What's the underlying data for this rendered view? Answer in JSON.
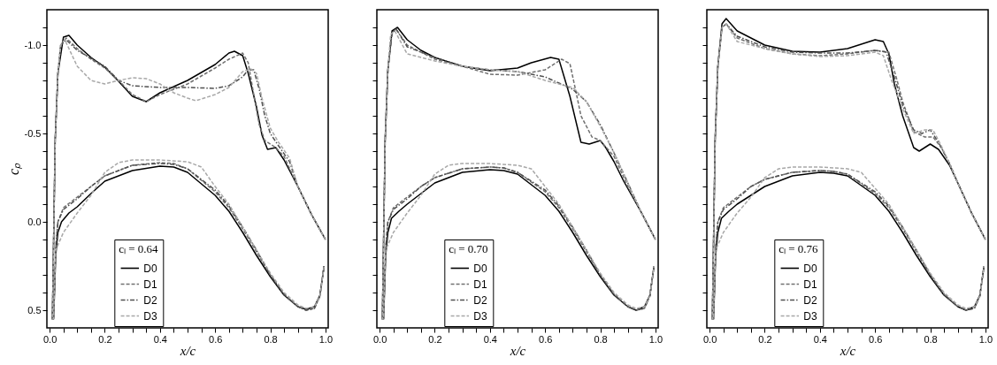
{
  "chart_data": [
    {
      "type": "line",
      "legend_title": "cₗ = 0.64",
      "xlabel": "x/c",
      "ylabel": "cₚ",
      "legend": "bottom",
      "grid": false,
      "xlim": [
        -0.01,
        1.01
      ],
      "ylim": [
        0.6,
        -1.2
      ],
      "xticks": [
        {
          "value": 0,
          "label": "0.0"
        },
        {
          "value": 0.05,
          "label": null
        },
        {
          "value": 0.1,
          "label": null
        },
        {
          "value": 0.15,
          "label": null
        },
        0.2,
        {
          "value": 0.25,
          "label": null
        },
        {
          "value": 0.3,
          "label": null
        },
        {
          "value": 0.35,
          "label": null
        },
        0.4,
        {
          "value": 0.45,
          "label": null
        },
        {
          "value": 0.5,
          "label": null
        },
        {
          "value": 0.55,
          "label": null
        },
        0.6,
        {
          "value": 0.65,
          "label": null
        },
        {
          "value": 0.7,
          "label": null
        },
        {
          "value": 0.75,
          "label": null
        },
        0.8,
        {
          "value": 0.85,
          "label": null
        },
        {
          "value": 0.9,
          "label": null
        },
        {
          "value": 0.95,
          "label": null
        },
        {
          "value": 1,
          "label": "1.0"
        }
      ],
      "yticks": [
        {
          "value": -1.1,
          "label": null
        },
        {
          "value": -1,
          "label": "-1.0"
        },
        {
          "value": -0.9,
          "label": null
        },
        {
          "value": -0.8,
          "label": null
        },
        {
          "value": -0.7,
          "label": null
        },
        {
          "value": -0.6,
          "label": null
        },
        -0.5,
        {
          "value": -0.4,
          "label": null
        },
        {
          "value": -0.3,
          "label": null
        },
        {
          "value": -0.2,
          "label": null
        },
        {
          "value": -0.1,
          "label": null
        },
        {
          "value": 0,
          "label": "0.0"
        },
        {
          "value": 0.1,
          "label": null
        },
        {
          "value": 0.2,
          "label": null
        },
        {
          "value": 0.3,
          "label": null
        },
        {
          "value": 0.4,
          "label": null
        },
        0.5
      ],
      "series": [
        {
          "name": "D0",
          "color": "#000000",
          "line_style": "solid",
          "x": [
            1.0,
            0.95,
            0.9,
            0.85,
            0.82,
            0.79,
            0.77,
            0.75,
            0.72,
            0.7,
            0.67,
            0.65,
            0.6,
            0.5,
            0.4,
            0.35,
            0.3,
            0.25,
            0.2,
            0.15,
            0.1,
            0.07,
            0.05,
            0.03,
            0.02,
            0.01,
            0.014,
            0.017,
            0.022,
            0.03,
            0.043,
            0.07,
            0.1,
            0.15,
            0.2,
            0.3,
            0.4,
            0.45,
            0.5,
            0.6,
            0.65,
            0.7,
            0.75,
            0.8,
            0.85,
            0.9,
            0.93,
            0.96,
            0.98,
            0.995
          ],
          "values": [
            0.1,
            -0.04,
            -0.2,
            -0.35,
            -0.42,
            -0.41,
            -0.49,
            -0.65,
            -0.84,
            -0.94,
            -0.965,
            -0.955,
            -0.89,
            -0.8,
            -0.73,
            -0.68,
            -0.71,
            -0.795,
            -0.875,
            -0.93,
            -1.0,
            -1.055,
            -1.045,
            -0.84,
            -0.46,
            0.55,
            0.55,
            0.43,
            0.19,
            0.06,
            0.0,
            -0.05,
            -0.085,
            -0.16,
            -0.23,
            -0.29,
            -0.315,
            -0.31,
            -0.28,
            -0.15,
            -0.06,
            0.06,
            0.19,
            0.31,
            0.415,
            0.48,
            0.495,
            0.48,
            0.415,
            0.25
          ]
        },
        {
          "name": "D1",
          "color": "#707070",
          "line_style": "dashed",
          "x": [
            1.0,
            0.95,
            0.9,
            0.85,
            0.82,
            0.78,
            0.76,
            0.74,
            0.72,
            0.7,
            0.65,
            0.6,
            0.5,
            0.4,
            0.35,
            0.3,
            0.25,
            0.2,
            0.15,
            0.1,
            0.06,
            0.04,
            0.03,
            0.02,
            0.01,
            0.014,
            0.017,
            0.022,
            0.03,
            0.05,
            0.1,
            0.15,
            0.2,
            0.3,
            0.4,
            0.45,
            0.5,
            0.6,
            0.65,
            0.7,
            0.75,
            0.8,
            0.85,
            0.9,
            0.93,
            0.96,
            0.98,
            0.995
          ],
          "values": [
            0.1,
            -0.04,
            -0.2,
            -0.37,
            -0.42,
            -0.46,
            -0.55,
            -0.72,
            -0.9,
            -0.955,
            -0.92,
            -0.87,
            -0.78,
            -0.72,
            -0.68,
            -0.72,
            -0.8,
            -0.87,
            -0.92,
            -0.98,
            -1.04,
            -1.0,
            -0.84,
            -0.46,
            0.55,
            0.55,
            0.4,
            0.15,
            0.0,
            -0.08,
            -0.14,
            -0.2,
            -0.26,
            -0.32,
            -0.335,
            -0.33,
            -0.3,
            -0.17,
            -0.08,
            0.04,
            0.17,
            0.3,
            0.41,
            0.48,
            0.5,
            0.49,
            0.42,
            0.25
          ]
        },
        {
          "name": "D2",
          "color": "#505050",
          "line_style": "dashdot",
          "x": [
            1.0,
            0.95,
            0.9,
            0.87,
            0.83,
            0.8,
            0.78,
            0.76,
            0.74,
            0.72,
            0.7,
            0.65,
            0.6,
            0.5,
            0.4,
            0.3,
            0.25,
            0.2,
            0.1,
            0.06,
            0.04,
            0.03,
            0.02,
            0.01,
            0.014,
            0.017,
            0.022,
            0.03,
            0.05,
            0.1,
            0.15,
            0.2,
            0.3,
            0.4,
            0.45,
            0.5,
            0.6,
            0.65,
            0.7,
            0.75,
            0.8,
            0.85,
            0.9,
            0.93,
            0.96,
            0.98,
            0.995
          ],
          "values": [
            0.1,
            -0.04,
            -0.2,
            -0.34,
            -0.43,
            -0.5,
            -0.6,
            -0.75,
            -0.86,
            -0.86,
            -0.82,
            -0.77,
            -0.755,
            -0.76,
            -0.76,
            -0.77,
            -0.8,
            -0.88,
            -0.97,
            -1.03,
            -1.0,
            -0.84,
            -0.46,
            0.55,
            0.55,
            0.4,
            0.15,
            0.0,
            -0.07,
            -0.13,
            -0.2,
            -0.26,
            -0.32,
            -0.33,
            -0.325,
            -0.3,
            -0.18,
            -0.09,
            0.03,
            0.16,
            0.3,
            0.41,
            0.48,
            0.5,
            0.49,
            0.42,
            0.25
          ]
        },
        {
          "name": "D3",
          "color": "#a8a8a8",
          "line_style": "dashed",
          "x": [
            1.0,
            0.95,
            0.9,
            0.87,
            0.83,
            0.8,
            0.77,
            0.75,
            0.73,
            0.7,
            0.65,
            0.6,
            0.53,
            0.5,
            0.45,
            0.4,
            0.35,
            0.3,
            0.25,
            0.2,
            0.15,
            0.1,
            0.055,
            0.04,
            0.03,
            0.02,
            0.01,
            0.014,
            0.022,
            0.05,
            0.1,
            0.15,
            0.2,
            0.25,
            0.3,
            0.4,
            0.5,
            0.55,
            0.6,
            0.65,
            0.7,
            0.75,
            0.8,
            0.85,
            0.9,
            0.93,
            0.96,
            0.98,
            0.995
          ],
          "values": [
            0.1,
            -0.04,
            -0.2,
            -0.36,
            -0.45,
            -0.53,
            -0.7,
            -0.84,
            -0.865,
            -0.85,
            -0.76,
            -0.72,
            -0.685,
            -0.7,
            -0.73,
            -0.78,
            -0.81,
            -0.815,
            -0.8,
            -0.78,
            -0.8,
            -0.88,
            -1.03,
            -1.0,
            -0.84,
            -0.46,
            0.55,
            0.55,
            0.16,
            0.06,
            -0.05,
            -0.15,
            -0.28,
            -0.335,
            -0.35,
            -0.35,
            -0.34,
            -0.31,
            -0.2,
            -0.1,
            0.03,
            0.16,
            0.29,
            0.4,
            0.47,
            0.49,
            0.48,
            0.42,
            0.25
          ]
        }
      ]
    },
    {
      "type": "line",
      "legend_title": "cₗ = 0.70",
      "xlabel": "x/c",
      "legend": "bottom",
      "grid": false,
      "tick_labels": "x",
      "xlim": [
        -0.01,
        1.01
      ],
      "ylim": [
        0.6,
        -1.2
      ],
      "xticks": [
        {
          "value": 0,
          "label": "0.0"
        },
        {
          "value": 0.05,
          "label": null
        },
        {
          "value": 0.1,
          "label": null
        },
        {
          "value": 0.15,
          "label": null
        },
        0.2,
        {
          "value": 0.25,
          "label": null
        },
        {
          "value": 0.3,
          "label": null
        },
        {
          "value": 0.35,
          "label": null
        },
        0.4,
        {
          "value": 0.45,
          "label": null
        },
        {
          "value": 0.5,
          "label": null
        },
        {
          "value": 0.55,
          "label": null
        },
        0.6,
        {
          "value": 0.65,
          "label": null
        },
        {
          "value": 0.7,
          "label": null
        },
        {
          "value": 0.75,
          "label": null
        },
        0.8,
        {
          "value": 0.85,
          "label": null
        },
        {
          "value": 0.9,
          "label": null
        },
        {
          "value": 0.95,
          "label": null
        },
        {
          "value": 1,
          "label": "1.0"
        }
      ],
      "yticks": [
        -1.1,
        -1,
        -0.9,
        -0.8,
        -0.7,
        -0.6,
        -0.5,
        -0.4,
        -0.3,
        -0.2,
        -0.1,
        0,
        0.1,
        0.2,
        0.3,
        0.4,
        0.5
      ],
      "series": [
        {
          "name": "D0",
          "color": "#000000",
          "line_style": "solid",
          "x": [
            1.0,
            0.95,
            0.885,
            0.85,
            0.82,
            0.8,
            0.76,
            0.73,
            0.69,
            0.65,
            0.62,
            0.55,
            0.5,
            0.4,
            0.3,
            0.2,
            0.15,
            0.1,
            0.065,
            0.045,
            0.03,
            0.02,
            0.01,
            0.014,
            0.017,
            0.022,
            0.03,
            0.043,
            0.07,
            0.1,
            0.15,
            0.2,
            0.3,
            0.4,
            0.45,
            0.5,
            0.6,
            0.65,
            0.7,
            0.75,
            0.8,
            0.85,
            0.9,
            0.93,
            0.96,
            0.98,
            0.995
          ],
          "values": [
            0.1,
            -0.05,
            -0.23,
            -0.34,
            -0.42,
            -0.46,
            -0.44,
            -0.45,
            -0.71,
            -0.92,
            -0.93,
            -0.9,
            -0.87,
            -0.855,
            -0.88,
            -0.93,
            -0.97,
            -1.03,
            -1.1,
            -1.08,
            -0.86,
            -0.46,
            0.55,
            0.55,
            0.43,
            0.19,
            0.06,
            -0.02,
            -0.06,
            -0.1,
            -0.16,
            -0.22,
            -0.28,
            -0.295,
            -0.29,
            -0.27,
            -0.15,
            -0.06,
            0.06,
            0.19,
            0.31,
            0.415,
            0.48,
            0.5,
            0.48,
            0.415,
            0.25
          ]
        },
        {
          "name": "D1",
          "color": "#707070",
          "line_style": "dashed",
          "x": [
            1.0,
            0.95,
            0.9,
            0.85,
            0.8,
            0.77,
            0.73,
            0.71,
            0.69,
            0.66,
            0.6,
            0.5,
            0.4,
            0.3,
            0.2,
            0.1,
            0.06,
            0.045,
            0.03,
            0.02,
            0.01,
            0.014,
            0.017,
            0.022,
            0.03,
            0.05,
            0.1,
            0.15,
            0.2,
            0.3,
            0.4,
            0.45,
            0.5,
            0.6,
            0.65,
            0.7,
            0.75,
            0.8,
            0.85,
            0.9,
            0.93,
            0.96,
            0.98,
            0.995
          ],
          "values": [
            0.1,
            -0.05,
            -0.2,
            -0.37,
            -0.46,
            -0.48,
            -0.6,
            -0.75,
            -0.895,
            -0.92,
            -0.86,
            -0.83,
            -0.835,
            -0.88,
            -0.92,
            -1.0,
            -1.09,
            -1.07,
            -0.86,
            -0.46,
            0.55,
            0.55,
            0.4,
            0.15,
            0.0,
            -0.08,
            -0.14,
            -0.2,
            -0.25,
            -0.3,
            -0.31,
            -0.305,
            -0.28,
            -0.17,
            -0.08,
            0.04,
            0.17,
            0.3,
            0.41,
            0.48,
            0.5,
            0.49,
            0.42,
            0.25
          ]
        },
        {
          "name": "D2",
          "color": "#505050",
          "line_style": "dashdot",
          "x": [
            1.0,
            0.95,
            0.9,
            0.85,
            0.8,
            0.75,
            0.7,
            0.6,
            0.5,
            0.4,
            0.3,
            0.2,
            0.1,
            0.06,
            0.045,
            0.03,
            0.02,
            0.01,
            0.014,
            0.017,
            0.022,
            0.03,
            0.05,
            0.1,
            0.15,
            0.2,
            0.3,
            0.4,
            0.45,
            0.5,
            0.6,
            0.65,
            0.7,
            0.75,
            0.8,
            0.85,
            0.9,
            0.93,
            0.96,
            0.98,
            0.995
          ],
          "values": [
            0.1,
            -0.05,
            -0.22,
            -0.39,
            -0.55,
            -0.68,
            -0.75,
            -0.82,
            -0.85,
            -0.86,
            -0.88,
            -0.93,
            -0.99,
            -1.09,
            -1.07,
            -0.86,
            -0.46,
            0.55,
            0.55,
            0.4,
            0.15,
            0.0,
            -0.07,
            -0.13,
            -0.2,
            -0.25,
            -0.3,
            -0.31,
            -0.305,
            -0.28,
            -0.18,
            -0.09,
            0.03,
            0.16,
            0.3,
            0.41,
            0.48,
            0.5,
            0.49,
            0.42,
            0.25
          ]
        },
        {
          "name": "D3",
          "color": "#a8a8a8",
          "line_style": "dashed",
          "x": [
            1.0,
            0.95,
            0.9,
            0.85,
            0.8,
            0.75,
            0.7,
            0.6,
            0.5,
            0.4,
            0.3,
            0.2,
            0.1,
            0.055,
            0.04,
            0.03,
            0.02,
            0.01,
            0.014,
            0.022,
            0.05,
            0.1,
            0.15,
            0.2,
            0.25,
            0.3,
            0.4,
            0.5,
            0.55,
            0.6,
            0.65,
            0.7,
            0.75,
            0.8,
            0.85,
            0.9,
            0.93,
            0.96,
            0.98,
            0.995
          ],
          "values": [
            0.1,
            -0.05,
            -0.22,
            -0.39,
            -0.54,
            -0.68,
            -0.76,
            -0.8,
            -0.85,
            -0.86,
            -0.88,
            -0.91,
            -0.95,
            -1.08,
            -1.06,
            -0.86,
            -0.46,
            0.55,
            0.55,
            0.16,
            0.06,
            -0.05,
            -0.15,
            -0.27,
            -0.32,
            -0.33,
            -0.33,
            -0.32,
            -0.3,
            -0.2,
            -0.1,
            0.03,
            0.16,
            0.29,
            0.4,
            0.47,
            0.49,
            0.48,
            0.42,
            0.25
          ]
        }
      ]
    },
    {
      "type": "line",
      "legend_title": "cₗ = 0.76",
      "xlabel": "x/c",
      "legend": "bottom",
      "grid": false,
      "tick_labels": "x",
      "xlim": [
        -0.01,
        1.01
      ],
      "ylim": [
        0.6,
        -1.2
      ],
      "xticks": [
        {
          "value": 0,
          "label": "0.0"
        },
        {
          "value": 0.05,
          "label": null
        },
        {
          "value": 0.1,
          "label": null
        },
        {
          "value": 0.15,
          "label": null
        },
        0.2,
        {
          "value": 0.25,
          "label": null
        },
        {
          "value": 0.3,
          "label": null
        },
        {
          "value": 0.35,
          "label": null
        },
        0.4,
        {
          "value": 0.45,
          "label": null
        },
        {
          "value": 0.5,
          "label": null
        },
        {
          "value": 0.55,
          "label": null
        },
        0.6,
        {
          "value": 0.65,
          "label": null
        },
        {
          "value": 0.7,
          "label": null
        },
        {
          "value": 0.75,
          "label": null
        },
        0.8,
        {
          "value": 0.85,
          "label": null
        },
        {
          "value": 0.9,
          "label": null
        },
        {
          "value": 0.95,
          "label": null
        },
        {
          "value": 1,
          "label": "1.0"
        }
      ],
      "yticks": [
        -1.1,
        -1,
        -0.9,
        -0.8,
        -0.7,
        -0.6,
        -0.5,
        -0.4,
        -0.3,
        -0.2,
        -0.1,
        0,
        0.1,
        0.2,
        0.3,
        0.4,
        0.5
      ],
      "series": [
        {
          "name": "D0",
          "color": "#000000",
          "line_style": "solid",
          "x": [
            1.0,
            0.95,
            0.9,
            0.87,
            0.83,
            0.8,
            0.76,
            0.74,
            0.7,
            0.67,
            0.65,
            0.63,
            0.6,
            0.5,
            0.4,
            0.3,
            0.2,
            0.1,
            0.06,
            0.045,
            0.03,
            0.02,
            0.01,
            0.014,
            0.017,
            0.022,
            0.03,
            0.043,
            0.07,
            0.1,
            0.15,
            0.2,
            0.3,
            0.4,
            0.45,
            0.5,
            0.6,
            0.65,
            0.7,
            0.75,
            0.8,
            0.85,
            0.9,
            0.93,
            0.96,
            0.98,
            0.995
          ],
          "values": [
            0.1,
            -0.05,
            -0.22,
            -0.32,
            -0.41,
            -0.44,
            -0.4,
            -0.42,
            -0.6,
            -0.78,
            -0.95,
            -1.02,
            -1.03,
            -0.98,
            -0.96,
            -0.965,
            -1.0,
            -1.08,
            -1.15,
            -1.12,
            -0.88,
            -0.46,
            0.55,
            0.55,
            0.43,
            0.19,
            0.06,
            -0.02,
            -0.06,
            -0.1,
            -0.15,
            -0.2,
            -0.26,
            -0.28,
            -0.275,
            -0.26,
            -0.15,
            -0.06,
            0.06,
            0.19,
            0.31,
            0.415,
            0.48,
            0.5,
            0.48,
            0.415,
            0.25
          ]
        },
        {
          "name": "D1",
          "color": "#707070",
          "line_style": "dashed",
          "x": [
            1.0,
            0.95,
            0.9,
            0.87,
            0.84,
            0.81,
            0.78,
            0.74,
            0.7,
            0.68,
            0.65,
            0.6,
            0.5,
            0.4,
            0.3,
            0.2,
            0.1,
            0.06,
            0.045,
            0.03,
            0.02,
            0.01,
            0.014,
            0.017,
            0.022,
            0.03,
            0.05,
            0.1,
            0.15,
            0.2,
            0.3,
            0.4,
            0.45,
            0.5,
            0.6,
            0.65,
            0.7,
            0.75,
            0.8,
            0.85,
            0.9,
            0.93,
            0.96,
            0.98,
            0.995
          ],
          "values": [
            0.1,
            -0.05,
            -0.22,
            -0.33,
            -0.42,
            -0.48,
            -0.48,
            -0.51,
            -0.68,
            -0.8,
            -0.96,
            -0.97,
            -0.95,
            -0.94,
            -0.95,
            -0.98,
            -1.04,
            -1.12,
            -1.1,
            -0.88,
            -0.46,
            0.55,
            0.55,
            0.4,
            0.15,
            0.0,
            -0.08,
            -0.14,
            -0.2,
            -0.24,
            -0.28,
            -0.29,
            -0.285,
            -0.27,
            -0.16,
            -0.08,
            0.04,
            0.17,
            0.3,
            0.41,
            0.48,
            0.5,
            0.49,
            0.42,
            0.25
          ]
        },
        {
          "name": "D2",
          "color": "#505050",
          "line_style": "dashdot",
          "x": [
            1.0,
            0.95,
            0.9,
            0.87,
            0.83,
            0.8,
            0.77,
            0.74,
            0.7,
            0.67,
            0.64,
            0.6,
            0.5,
            0.4,
            0.3,
            0.2,
            0.1,
            0.06,
            0.045,
            0.03,
            0.02,
            0.01,
            0.014,
            0.017,
            0.022,
            0.03,
            0.05,
            0.1,
            0.15,
            0.2,
            0.3,
            0.4,
            0.45,
            0.5,
            0.6,
            0.65,
            0.7,
            0.75,
            0.8,
            0.85,
            0.9,
            0.93,
            0.96,
            0.98,
            0.995
          ],
          "values": [
            0.1,
            -0.05,
            -0.22,
            -0.33,
            -0.45,
            -0.52,
            -0.5,
            -0.52,
            -0.66,
            -0.82,
            -0.96,
            -0.97,
            -0.955,
            -0.955,
            -0.96,
            -0.99,
            -1.05,
            -1.12,
            -1.1,
            -0.88,
            -0.46,
            0.55,
            0.55,
            0.4,
            0.15,
            0.0,
            -0.07,
            -0.13,
            -0.2,
            -0.24,
            -0.28,
            -0.29,
            -0.285,
            -0.27,
            -0.17,
            -0.09,
            0.03,
            0.16,
            0.3,
            0.41,
            0.48,
            0.5,
            0.49,
            0.42,
            0.25
          ]
        },
        {
          "name": "D3",
          "color": "#a8a8a8",
          "line_style": "dashed",
          "x": [
            1.0,
            0.95,
            0.9,
            0.87,
            0.84,
            0.81,
            0.78,
            0.74,
            0.7,
            0.66,
            0.63,
            0.6,
            0.5,
            0.4,
            0.3,
            0.2,
            0.1,
            0.06,
            0.045,
            0.03,
            0.02,
            0.01,
            0.014,
            0.022,
            0.05,
            0.1,
            0.15,
            0.2,
            0.25,
            0.3,
            0.4,
            0.5,
            0.55,
            0.6,
            0.65,
            0.7,
            0.75,
            0.8,
            0.85,
            0.9,
            0.93,
            0.96,
            0.98,
            0.995
          ],
          "values": [
            0.1,
            -0.05,
            -0.22,
            -0.33,
            -0.43,
            -0.52,
            -0.52,
            -0.5,
            -0.64,
            -0.8,
            -0.94,
            -0.96,
            -0.94,
            -0.935,
            -0.95,
            -0.98,
            -1.02,
            -1.12,
            -1.1,
            -0.88,
            -0.46,
            0.55,
            0.55,
            0.16,
            0.06,
            -0.05,
            -0.14,
            -0.25,
            -0.3,
            -0.31,
            -0.31,
            -0.3,
            -0.28,
            -0.19,
            -0.1,
            0.03,
            0.16,
            0.29,
            0.4,
            0.47,
            0.49,
            0.48,
            0.42,
            0.25
          ]
        }
      ]
    }
  ]
}
